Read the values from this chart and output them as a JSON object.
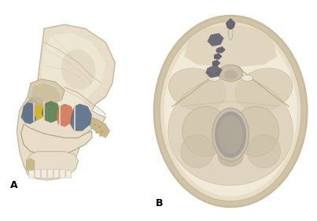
{
  "fig_width": 4.03,
  "fig_height": 2.81,
  "dpi": 100,
  "bg_color": "#ffffff",
  "label_A": "A",
  "label_B": "B",
  "label_fontsize": 9,
  "skull_bg": "#e8ddc8",
  "skull_light": "#f0ead8",
  "skull_outer": "#c8b898",
  "skull_mid": "#d8ccb4",
  "bone_dark": "#b8a882",
  "bone_edge": "#a89870",
  "sinus_blue": "#5a6e8c",
  "sinus_blue2": "#4a6080",
  "sinus_yellow": "#d4b430",
  "sinus_green": "#5a8050",
  "sinus_orange": "#d47858",
  "dark_patch": "#5a5a6a",
  "dark_patch2": "#4a4a58",
  "white_bright": "#e8e4d8",
  "tooth_color": "#f0ece0",
  "spongey": "#c8b88a",
  "foramen_color": "#c8c0b0",
  "foramen_inner": "#a8a098"
}
